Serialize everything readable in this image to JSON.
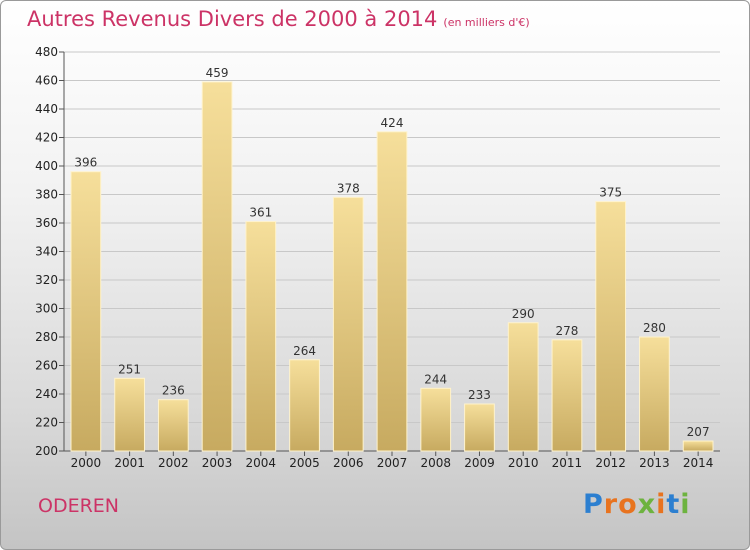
{
  "header": {
    "title": "Autres Revenus Divers de 2000 à 2014",
    "unit": "(en milliers d'€)"
  },
  "footer": {
    "place": "ODEREN",
    "brand": "Proxiti"
  },
  "colors": {
    "title": "#cc3366",
    "bar_top": "#f6df9b",
    "bar_bottom": "#c7aa60",
    "brand_letters": [
      "#2c7fd0",
      "#e8731f",
      "#e8731f",
      "#6db33f",
      "#e8731f",
      "#2c7fd0",
      "#6db33f"
    ]
  },
  "chart_data": {
    "type": "bar",
    "title": "Autres Revenus Divers de 2000 à 2014",
    "subtitle": "(en milliers d'€)",
    "categories": [
      "2000",
      "2001",
      "2002",
      "2003",
      "2004",
      "2005",
      "2006",
      "2007",
      "2008",
      "2009",
      "2010",
      "2011",
      "2012",
      "2013",
      "2014"
    ],
    "values": [
      396,
      251,
      236,
      459,
      361,
      264,
      378,
      424,
      244,
      233,
      290,
      278,
      375,
      280,
      207
    ],
    "ylim": [
      200,
      480
    ],
    "yticks": [
      200,
      220,
      240,
      260,
      280,
      300,
      320,
      340,
      360,
      380,
      400,
      420,
      440,
      460,
      480
    ],
    "grid": true,
    "legend": "none"
  }
}
